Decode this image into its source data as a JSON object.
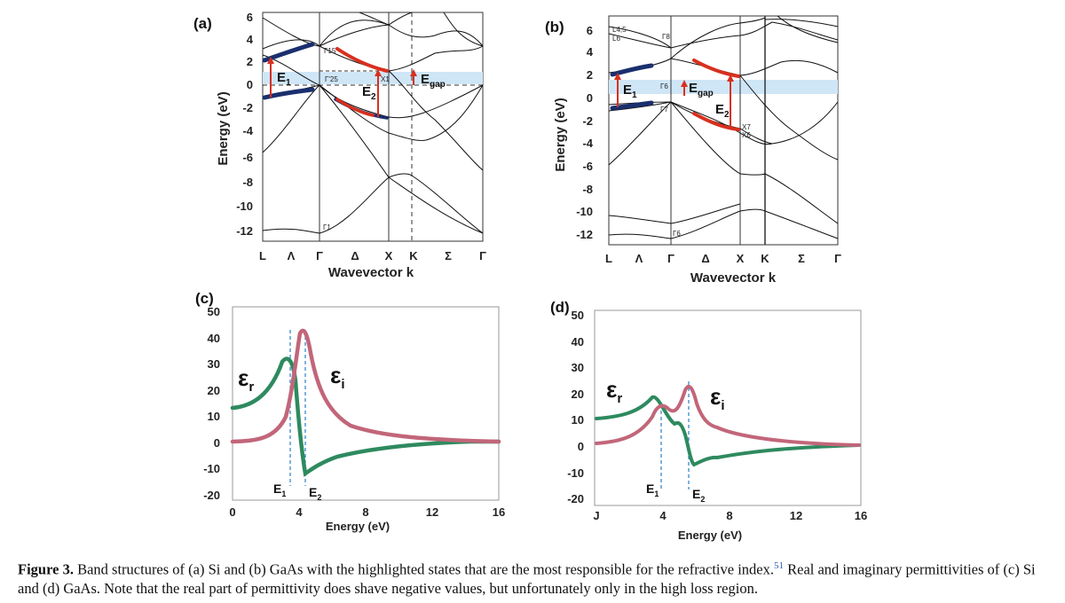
{
  "panels": {
    "a": {
      "tag": "(a)",
      "ylabel": "Energy (eV)",
      "xlabel": "Wavevector k",
      "yticks": [
        "6",
        "4",
        "2",
        "0",
        "-2",
        "-4",
        "-6",
        "-8",
        "-10",
        "-12"
      ],
      "kpoints": [
        "L",
        "Λ",
        "Γ",
        "Δ",
        "X",
        "K",
        "Σ",
        "Γ"
      ],
      "labels": {
        "e1": "E",
        "e1sub": "1",
        "e2": "E",
        "e2sub": "2",
        "egap": "E",
        "egapsub": "gap",
        "g15": "Γ15",
        "g25": "Γ'25",
        "x1": "X1",
        "g1": "Γ1"
      }
    },
    "b": {
      "tag": "(b)",
      "ylabel": "Energy (eV)",
      "xlabel": "Wavevector k",
      "yticks": [
        "6",
        "4",
        "2",
        "0",
        "-2",
        "-4",
        "-6",
        "-8",
        "-10",
        "-12"
      ],
      "kpoints": [
        "L",
        "Λ",
        "Γ",
        "Δ",
        "X",
        "K",
        "Σ",
        "Γ"
      ],
      "labels": {
        "e1": "E",
        "e1sub": "1",
        "e2": "E",
        "e2sub": "2",
        "egap": "E",
        "egapsub": "gap",
        "l6": "L6",
        "l45": "L4,5",
        "g8": "Γ8",
        "g7": "Γ7",
        "g6": "Γ6",
        "x7": "X7",
        "x6": "X6",
        "g6b": "Γ6"
      }
    },
    "c": {
      "tag": "(c)",
      "xlabel": "Energy (eV)",
      "yticks": [
        "50",
        "40",
        "30",
        "20",
        "10",
        "0",
        "-10",
        "-20"
      ],
      "xticks": [
        "0",
        "4",
        "8",
        "12",
        "16"
      ],
      "er": "ε",
      "ersub": "r",
      "ei": "ε",
      "eisub": "i",
      "e1": "E",
      "e1sub": "1",
      "e2": "E",
      "e2sub": "2"
    },
    "d": {
      "tag": "(d)",
      "xlabel": "Energy (eV)",
      "yticks": [
        "50",
        "40",
        "30",
        "20",
        "10",
        "0",
        "-10",
        "-20"
      ],
      "xticks": [
        "J",
        "4",
        "8",
        "12",
        "16"
      ],
      "er": "ε",
      "ersub": "r",
      "ei": "ε",
      "eisub": "i",
      "e1": "E",
      "e1sub": "1",
      "e2": "E",
      "e2sub": "2"
    }
  },
  "caption": {
    "label": "Figure 3.",
    "part1": " Band structures of (a) Si and (b) GaAs with the highlighted states that are the most responsible for the refractive index.",
    "ref": "51",
    "part2": " Real and imaginary permittivities of (c) Si and (d) GaAs. Note that the real part of permittivity does shave negative values, but unfortunately only in the high loss region."
  },
  "colors": {
    "highlight": "#cfe6f7",
    "valence": "#1a2f6e",
    "red": "#d8301f",
    "green": "#2e8a5f",
    "pink": "#c2667a"
  }
}
